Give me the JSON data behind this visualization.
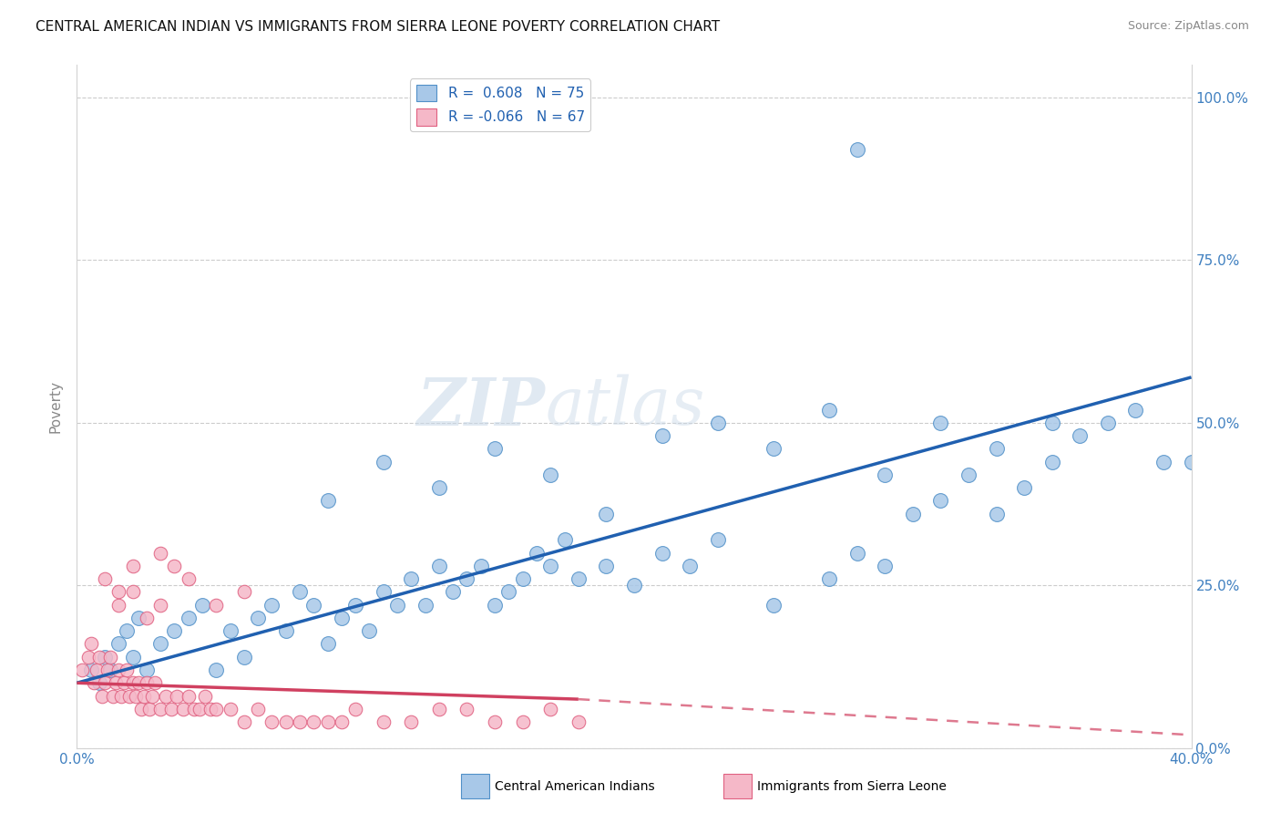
{
  "title": "CENTRAL AMERICAN INDIAN VS IMMIGRANTS FROM SIERRA LEONE POVERTY CORRELATION CHART",
  "source": "Source: ZipAtlas.com",
  "ylabel": "Poverty",
  "ytick_labels": [
    "0.0%",
    "25.0%",
    "50.0%",
    "75.0%",
    "100.0%"
  ],
  "ytick_values": [
    0.0,
    0.25,
    0.5,
    0.75,
    1.0
  ],
  "xlim": [
    0.0,
    0.4
  ],
  "ylim": [
    0.0,
    1.05
  ],
  "blue_color": "#a8c8e8",
  "pink_color": "#f5b8c8",
  "blue_edge_color": "#5090c8",
  "pink_edge_color": "#e06080",
  "blue_line_color": "#2060b0",
  "pink_line_color": "#d04060",
  "watermark_zip": "ZIP",
  "watermark_atlas": "atlas",
  "legend_r1_label": "R =  0.608   N = 75",
  "legend_r2_label": "R = -0.066   N = 67",
  "blue_x": [
    0.005,
    0.008,
    0.01,
    0.012,
    0.015,
    0.018,
    0.02,
    0.022,
    0.025,
    0.03,
    0.035,
    0.04,
    0.045,
    0.05,
    0.055,
    0.06,
    0.065,
    0.07,
    0.075,
    0.08,
    0.085,
    0.09,
    0.095,
    0.1,
    0.105,
    0.11,
    0.115,
    0.12,
    0.125,
    0.13,
    0.135,
    0.14,
    0.145,
    0.15,
    0.155,
    0.16,
    0.165,
    0.17,
    0.175,
    0.18,
    0.19,
    0.2,
    0.21,
    0.22,
    0.23,
    0.25,
    0.27,
    0.28,
    0.29,
    0.3,
    0.31,
    0.32,
    0.33,
    0.34,
    0.35,
    0.36,
    0.37,
    0.38,
    0.39,
    0.4,
    0.09,
    0.11,
    0.13,
    0.15,
    0.17,
    0.19,
    0.21,
    0.23,
    0.25,
    0.27,
    0.29,
    0.31,
    0.33,
    0.35,
    0.28
  ],
  "blue_y": [
    0.12,
    0.1,
    0.14,
    0.12,
    0.16,
    0.18,
    0.14,
    0.2,
    0.12,
    0.16,
    0.18,
    0.2,
    0.22,
    0.12,
    0.18,
    0.14,
    0.2,
    0.22,
    0.18,
    0.24,
    0.22,
    0.16,
    0.2,
    0.22,
    0.18,
    0.24,
    0.22,
    0.26,
    0.22,
    0.28,
    0.24,
    0.26,
    0.28,
    0.22,
    0.24,
    0.26,
    0.3,
    0.28,
    0.32,
    0.26,
    0.28,
    0.25,
    0.3,
    0.28,
    0.32,
    0.22,
    0.26,
    0.3,
    0.28,
    0.36,
    0.38,
    0.42,
    0.36,
    0.4,
    0.44,
    0.48,
    0.5,
    0.52,
    0.44,
    0.44,
    0.38,
    0.44,
    0.4,
    0.46,
    0.42,
    0.36,
    0.48,
    0.5,
    0.46,
    0.52,
    0.42,
    0.5,
    0.46,
    0.5,
    0.92
  ],
  "pink_x": [
    0.002,
    0.004,
    0.005,
    0.006,
    0.007,
    0.008,
    0.009,
    0.01,
    0.011,
    0.012,
    0.013,
    0.014,
    0.015,
    0.016,
    0.017,
    0.018,
    0.019,
    0.02,
    0.021,
    0.022,
    0.023,
    0.024,
    0.025,
    0.026,
    0.027,
    0.028,
    0.03,
    0.032,
    0.034,
    0.036,
    0.038,
    0.04,
    0.042,
    0.044,
    0.046,
    0.048,
    0.05,
    0.055,
    0.06,
    0.065,
    0.07,
    0.075,
    0.08,
    0.085,
    0.09,
    0.095,
    0.1,
    0.11,
    0.12,
    0.13,
    0.14,
    0.15,
    0.16,
    0.17,
    0.18,
    0.03,
    0.035,
    0.04,
    0.05,
    0.06,
    0.015,
    0.02,
    0.025,
    0.03,
    0.01,
    0.015,
    0.02
  ],
  "pink_y": [
    0.12,
    0.14,
    0.16,
    0.1,
    0.12,
    0.14,
    0.08,
    0.1,
    0.12,
    0.14,
    0.08,
    0.1,
    0.12,
    0.08,
    0.1,
    0.12,
    0.08,
    0.1,
    0.08,
    0.1,
    0.06,
    0.08,
    0.1,
    0.06,
    0.08,
    0.1,
    0.06,
    0.08,
    0.06,
    0.08,
    0.06,
    0.08,
    0.06,
    0.06,
    0.08,
    0.06,
    0.06,
    0.06,
    0.04,
    0.06,
    0.04,
    0.04,
    0.04,
    0.04,
    0.04,
    0.04,
    0.06,
    0.04,
    0.04,
    0.06,
    0.06,
    0.04,
    0.04,
    0.06,
    0.04,
    0.3,
    0.28,
    0.26,
    0.22,
    0.24,
    0.22,
    0.24,
    0.2,
    0.22,
    0.26,
    0.24,
    0.28
  ],
  "blue_line_x0": 0.0,
  "blue_line_x1": 0.4,
  "blue_line_y0": 0.1,
  "blue_line_y1": 0.57,
  "pink_line_solid_x0": 0.0,
  "pink_line_solid_x1": 0.18,
  "pink_line_solid_y0": 0.1,
  "pink_line_solid_y1": 0.075,
  "pink_line_dash_x0": 0.18,
  "pink_line_dash_x1": 0.4,
  "pink_line_dash_y0": 0.075,
  "pink_line_dash_y1": 0.02
}
